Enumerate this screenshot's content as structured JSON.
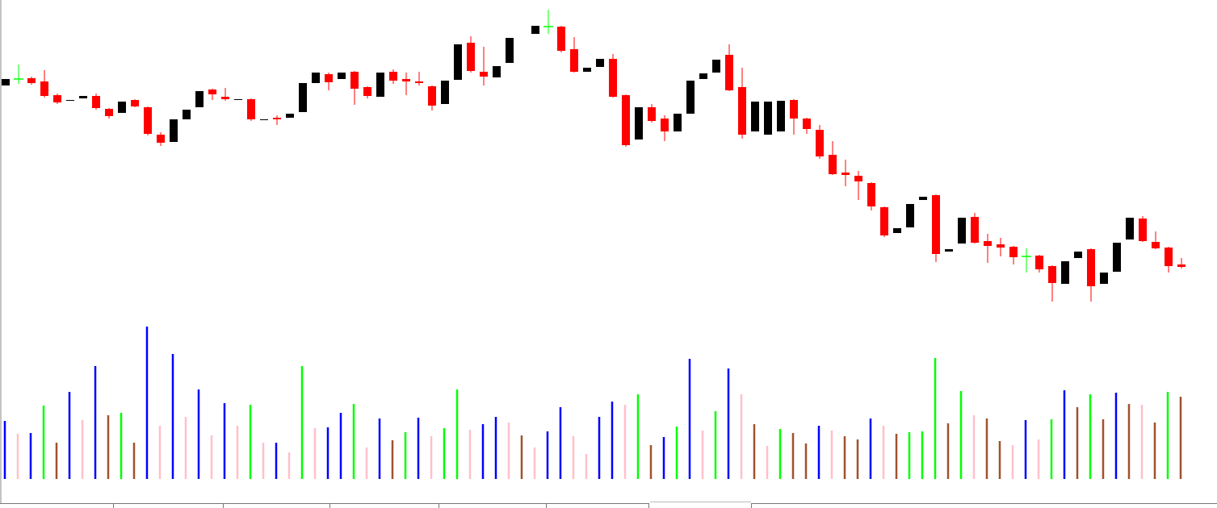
{
  "chart_data": [
    {
      "type": "candlestick",
      "up_color": "#000000",
      "down_color": "#ff0000",
      "doji_color": "#00ff00",
      "ylim": [
        0,
        400
      ],
      "open": [
        294,
        302,
        303,
        299,
        282,
        275,
        278,
        281,
        265,
        260,
        276,
        267,
        233,
        224,
        252,
        267,
        289,
        280,
        276,
        277,
        251,
        254,
        254,
        261,
        297,
        308,
        302,
        311,
        292,
        280,
        311,
        302,
        299,
        293,
        271,
        301,
        347,
        311,
        304,
        322,
        null,
        358,
        367,
        367,
        339,
        311,
        317,
        327,
        282,
        227,
        267,
        253,
        237,
        259,
        302,
        310,
        332,
        292,
        237,
        233,
        237,
        276,
        253,
        239,
        208,
        186,
        182,
        173,
        143,
        111,
        118,
        152,
        158,
        88,
        98,
        131,
        101,
        97,
        94,
        82,
        83,
        70,
        48,
        80,
        91,
        48,
        63,
        103,
        129,
        100,
        93,
        72
      ],
      "high": [
        302,
        320,
        305,
        313,
        284,
        276,
        281,
        284,
        266,
        274,
        277,
        268,
        236,
        252,
        264,
        287,
        290,
        291,
        277,
        278,
        252,
        257,
        259,
        297,
        310,
        310,
        310,
        312,
        293,
        310,
        314,
        310,
        311,
        294,
        300,
        345,
        355,
        342,
        318,
        353,
        null,
        368,
        388,
        368,
        354,
        316,
        327,
        333,
        283,
        267,
        271,
        257,
        259,
        300,
        309,
        326,
        345,
        316,
        274,
        274,
        275,
        277,
        254,
        245,
        225,
        202,
        188,
        174,
        144,
        117,
        147,
        156,
        159,
        91,
        130,
        136,
        110,
        105,
        95,
        92,
        84,
        71,
        76,
        88,
        92,
        62,
        99,
        130,
        132,
        113,
        94,
        80
      ],
      "low": [
        294,
        296,
        295,
        279,
        271,
        275,
        278,
        264,
        253,
        260,
        267,
        232,
        219,
        224,
        252,
        267,
        276,
        275,
        276,
        250,
        251,
        245,
        254,
        261,
        297,
        288,
        302,
        270,
        278,
        280,
        296,
        282,
        294,
        263,
        271,
        301,
        310,
        294,
        304,
        322,
        null,
        358,
        358,
        335,
        310,
        311,
        317,
        279,
        218,
        227,
        248,
        225,
        237,
        259,
        302,
        310,
        287,
        228,
        237,
        233,
        237,
        233,
        234,
        203,
        183,
        169,
        152,
        139,
        106,
        111,
        118,
        152,
        75,
        88,
        98,
        98,
        74,
        82,
        72,
        62,
        62,
        26,
        48,
        80,
        26,
        48,
        63,
        103,
        100,
        91,
        62,
        67
      ],
      "close": [
        302,
        302,
        297,
        281,
        273,
        276,
        281,
        266,
        256,
        274,
        268,
        234,
        223,
        252,
        264,
        287,
        283,
        277,
        277,
        252,
        252,
        252,
        259,
        297,
        310,
        298,
        310,
        290,
        281,
        310,
        300,
        299,
        297,
        269,
        300,
        345,
        312,
        305,
        318,
        353,
        null,
        368,
        367,
        337,
        311,
        316,
        327,
        280,
        220,
        267,
        250,
        237,
        259,
        300,
        309,
        326,
        288,
        233,
        274,
        274,
        275,
        253,
        240,
        206,
        184,
        183,
        175,
        144,
        108,
        117,
        147,
        156,
        85,
        91,
        130,
        99,
        95,
        93,
        81,
        82,
        66,
        49,
        76,
        88,
        45,
        62,
        99,
        130,
        101,
        92,
        70,
        69
      ]
    },
    {
      "type": "volume",
      "ylim": [
        0,
        200
      ],
      "values": [
        72,
        56,
        57,
        91,
        45,
        108,
        73,
        140,
        79,
        82,
        45,
        189,
        66,
        155,
        77,
        111,
        54,
        94,
        66,
        92,
        45,
        45,
        33,
        140,
        63,
        64,
        82,
        93,
        39,
        75,
        48,
        58,
        76,
        53,
        63,
        111,
        61,
        68,
        77,
        70,
        54,
        39,
        59,
        89,
        53,
        31,
        77,
        96,
        92,
        105,
        42,
        52,
        65,
        149,
        60,
        84,
        137,
        105,
        68,
        41,
        62,
        57,
        44,
        66,
        60,
        53,
        49,
        75,
        66,
        56,
        58,
        59,
        150,
        69,
        109,
        79,
        75,
        47,
        42,
        73,
        49,
        74,
        110,
        89,
        105,
        74,
        107,
        93,
        92,
        70,
        108,
        102
      ],
      "colors": [
        "blue",
        "pink",
        "blue",
        "lime",
        "sienna",
        "blue",
        "pink",
        "blue",
        "sienna",
        "lime",
        "sienna",
        "blue",
        "pink",
        "blue",
        "pink",
        "blue",
        "pink",
        "blue",
        "pink",
        "lime",
        "pink",
        "blue",
        "pink",
        "lime",
        "pink",
        "blue",
        "blue",
        "lime",
        "pink",
        "blue",
        "sienna",
        "lime",
        "blue",
        "pink",
        "lime",
        "lime",
        "pink",
        "blue",
        "blue",
        "pink",
        "sienna",
        "pink",
        "blue",
        "blue",
        "pink",
        "pink",
        "blue",
        "blue",
        "pink",
        "lime",
        "sienna",
        "blue",
        "lime",
        "blue",
        "pink",
        "lime",
        "blue",
        "pink",
        "sienna",
        "pink",
        "lime",
        "sienna",
        "sienna",
        "blue",
        "pink",
        "sienna",
        "sienna",
        "blue",
        "pink",
        "sienna",
        "lime",
        "lime",
        "lime",
        "sienna",
        "lime",
        "pink",
        "sienna",
        "sienna",
        "pink",
        "blue",
        "pink",
        "lime",
        "blue",
        "sienna",
        "lime",
        "sienna",
        "blue",
        "sienna",
        "pink",
        "sienna",
        "lime",
        "sienna"
      ]
    }
  ]
}
